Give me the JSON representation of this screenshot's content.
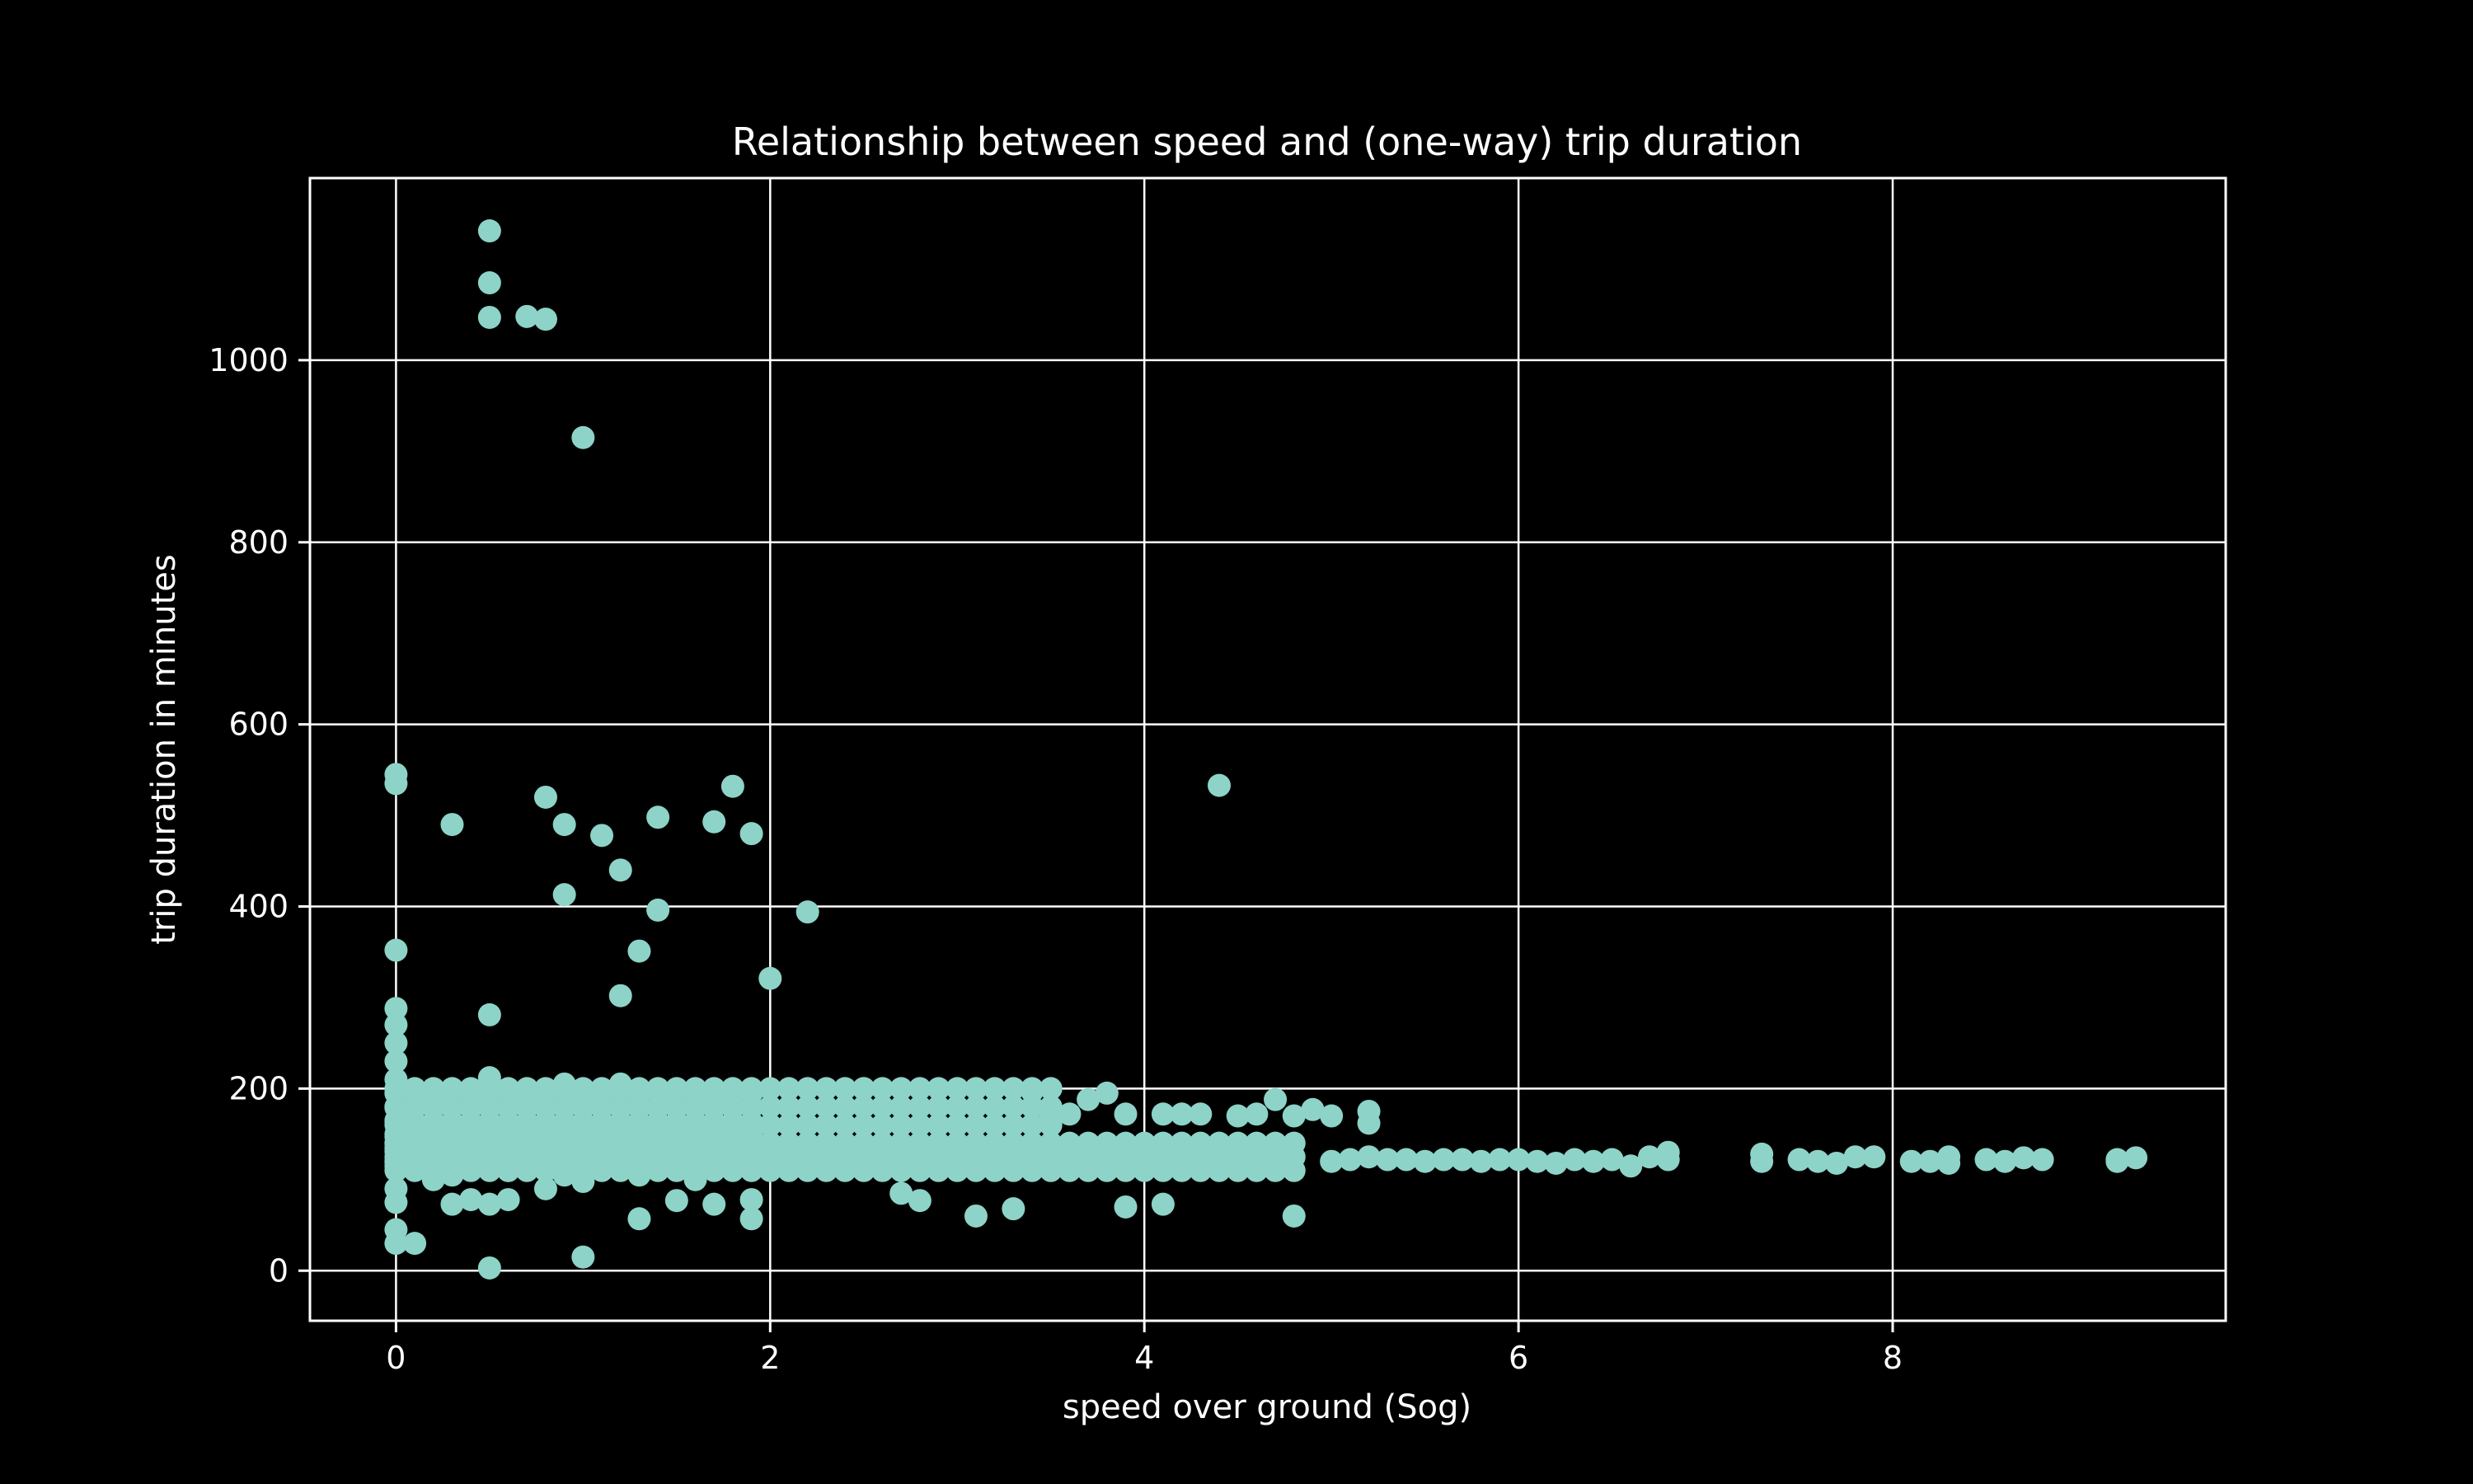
{
  "chart_data": {
    "type": "scatter",
    "title": "Relationship between speed and (one-way) trip duration",
    "xlabel": "speed over ground (Sog)",
    "ylabel": "trip duration in minutes",
    "xlim": [
      -0.46,
      9.78
    ],
    "ylim": [
      -55,
      1200
    ],
    "xticks": [
      0,
      2,
      4,
      6,
      8
    ],
    "yticks": [
      0,
      200,
      400,
      600,
      800,
      1000
    ],
    "grid": true,
    "marker_color": "#8dd3c7",
    "background": "#000000",
    "foreground": "#ffffff",
    "series": [
      {
        "points": [
          [
            0.5,
            1142
          ],
          [
            0.5,
            1085
          ],
          [
            0.5,
            1047
          ],
          [
            0.7,
            1048
          ],
          [
            0.8,
            1045
          ],
          [
            1.0,
            915
          ],
          [
            0.0,
            545
          ],
          [
            0.0,
            535
          ],
          [
            0.3,
            490
          ],
          [
            0.8,
            520
          ],
          [
            0.9,
            490
          ],
          [
            1.1,
            478
          ],
          [
            1.4,
            498
          ],
          [
            1.7,
            493
          ],
          [
            1.8,
            532
          ],
          [
            1.9,
            480
          ],
          [
            4.4,
            533
          ],
          [
            0.9,
            413
          ],
          [
            1.2,
            440
          ],
          [
            1.4,
            396
          ],
          [
            2.2,
            394
          ],
          [
            1.3,
            351
          ],
          [
            2.0,
            321
          ],
          [
            1.2,
            302
          ],
          [
            0.0,
            352
          ],
          [
            0.5,
            281
          ],
          [
            0.0,
            288
          ],
          [
            0.0,
            270
          ],
          [
            0.0,
            250
          ],
          [
            0.0,
            230
          ],
          [
            0.0,
            210
          ],
          [
            0.0,
            195
          ],
          [
            0.0,
            180
          ],
          [
            0.0,
            165
          ],
          [
            0.0,
            150
          ],
          [
            0.0,
            135
          ],
          [
            0.0,
            120
          ],
          [
            0.0,
            90
          ],
          [
            0.0,
            75
          ],
          [
            0.0,
            45
          ],
          [
            0.0,
            30
          ],
          [
            0.1,
            30
          ],
          [
            0.5,
            3
          ],
          [
            1.0,
            15
          ],
          [
            0.3,
            73
          ],
          [
            0.4,
            78
          ],
          [
            0.5,
            73
          ],
          [
            0.6,
            78
          ],
          [
            0.8,
            90
          ],
          [
            1.0,
            98
          ],
          [
            1.3,
            57
          ],
          [
            1.5,
            77
          ],
          [
            1.7,
            73
          ],
          [
            1.9,
            57
          ],
          [
            1.9,
            78
          ],
          [
            2.7,
            85
          ],
          [
            2.8,
            77
          ],
          [
            3.1,
            60
          ],
          [
            3.3,
            68
          ],
          [
            3.9,
            70
          ],
          [
            4.1,
            73
          ],
          [
            4.8,
            60
          ],
          [
            0.2,
            100
          ],
          [
            0.3,
            105
          ],
          [
            0.6,
            110
          ],
          [
            0.9,
            105
          ],
          [
            1.3,
            105
          ],
          [
            1.6,
            100
          ],
          [
            0.5,
            212
          ],
          [
            0.9,
            205
          ],
          [
            1.2,
            205
          ],
          [
            2.5,
            200
          ],
          [
            3.4,
            197
          ],
          [
            3.8,
            195
          ],
          [
            3.7,
            188
          ],
          [
            4.7,
            188
          ],
          [
            4.9,
            177
          ],
          [
            5.2,
            175
          ],
          [
            5.2,
            162
          ],
          [
            5.0,
            170
          ],
          [
            4.8,
            170
          ],
          [
            4.6,
            172
          ],
          [
            4.5,
            170
          ],
          [
            4.3,
            172
          ],
          [
            4.2,
            172
          ],
          [
            4.1,
            172
          ],
          [
            3.9,
            172
          ],
          [
            3.6,
            172
          ],
          [
            3.5,
            168
          ],
          [
            5.0,
            120
          ],
          [
            5.1,
            122
          ],
          [
            5.2,
            125
          ],
          [
            5.3,
            122
          ],
          [
            5.4,
            122
          ],
          [
            5.5,
            120
          ],
          [
            5.6,
            122
          ],
          [
            5.7,
            122
          ],
          [
            5.8,
            120
          ],
          [
            5.9,
            122
          ],
          [
            6.0,
            122
          ],
          [
            6.1,
            120
          ],
          [
            6.2,
            118
          ],
          [
            6.3,
            122
          ],
          [
            6.4,
            120
          ],
          [
            6.5,
            122
          ],
          [
            6.6,
            115
          ],
          [
            6.7,
            125
          ],
          [
            6.8,
            130
          ],
          [
            6.8,
            122
          ],
          [
            7.3,
            128
          ],
          [
            7.3,
            120
          ],
          [
            7.5,
            122
          ],
          [
            7.6,
            120
          ],
          [
            7.7,
            118
          ],
          [
            7.8,
            125
          ],
          [
            7.9,
            125
          ],
          [
            8.1,
            120
          ],
          [
            8.2,
            120
          ],
          [
            8.3,
            125
          ],
          [
            8.3,
            118
          ],
          [
            8.5,
            122
          ],
          [
            8.6,
            120
          ],
          [
            8.7,
            124
          ],
          [
            8.8,
            122
          ],
          [
            9.2,
            122
          ],
          [
            9.3,
            124
          ],
          [
            9.2,
            120
          ]
        ],
        "bands": [
          {
            "x_start": 0.0,
            "x_end": 4.8,
            "x_step": 0.1,
            "y_min": 110,
            "y_max": 140,
            "n_y": 3
          },
          {
            "x_start": 0.0,
            "x_end": 3.5,
            "x_step": 0.1,
            "y_min": 120,
            "y_max": 200,
            "n_y": 5
          },
          {
            "x_start": 0.0,
            "x_end": 1.9,
            "x_step": 0.1,
            "y_min": 115,
            "y_max": 195,
            "n_y": 6
          }
        ]
      }
    ]
  }
}
